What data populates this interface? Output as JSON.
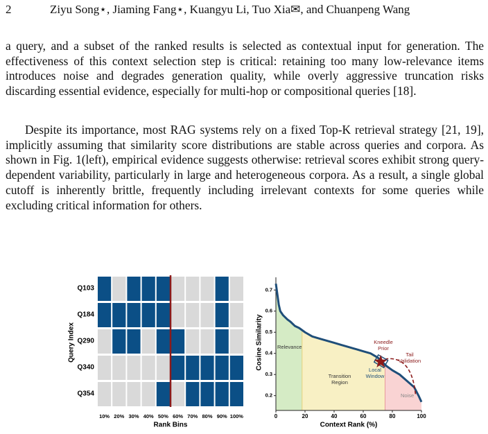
{
  "header": {
    "page_number": "2",
    "authors": "Ziyu Song⋆, Jiaming Fang⋆, Kuangyu Li, Tuo Xia✉, and Chuanpeng Wang"
  },
  "paragraphs": [
    "a query, and a subset of the ranked results is selected as contextual input for generation. The effectiveness of this context selection step is critical: retaining too many low-relevance items introduces noise and degrades generation quality, while overly aggressive truncation risks discarding essential evidence, especially for multi-hop or compositional queries [18].",
    "Despite its importance, most RAG systems rely on a fixed Top-K retrieval strategy [21, 19], implicitly assuming that similarity score distributions are stable across queries and corpora. As shown in Fig. 1(left), empirical evidence suggests otherwise: retrieval scores exhibit strong query-dependent variability, particularly in large and heterogeneous corpora. As a result, a single global cutoff is inherently brittle, frequently including irrelevant contexts for some queries while excluding critical information for others."
  ],
  "figure": {
    "heatmap": {
      "ylabel": "Query Index",
      "xlabel": "Rank Bins",
      "categories": [
        "10%",
        "20%",
        "30%",
        "40%",
        "50%",
        "60%",
        "70%",
        "80%",
        "90%",
        "100%"
      ],
      "rows": [
        {
          "name": "Q103",
          "cells": [
            1,
            0,
            1,
            1,
            1,
            0,
            0,
            0,
            1,
            0
          ]
        },
        {
          "name": "Q184",
          "cells": [
            1,
            1,
            1,
            1,
            1,
            0,
            0,
            0,
            1,
            0
          ]
        },
        {
          "name": "Q290",
          "cells": [
            0,
            1,
            1,
            0,
            1,
            1,
            0,
            0,
            1,
            0
          ]
        },
        {
          "name": "Q340",
          "cells": [
            0,
            0,
            0,
            0,
            0,
            1,
            1,
            1,
            1,
            1
          ]
        },
        {
          "name": "Q354",
          "cells": [
            0,
            0,
            0,
            0,
            1,
            0,
            1,
            1,
            1,
            1
          ]
        }
      ],
      "on_color": "#0b4f86",
      "off_color": "#d9d9d9",
      "cutoff_color": "#8b1a1a"
    },
    "chart": {
      "type": "line",
      "xlabel": "Context Rank (%)",
      "ylabel": "Cosine Similarity",
      "x": [
        0,
        1,
        2,
        3,
        5,
        8,
        10,
        13,
        16,
        20,
        25,
        30,
        35,
        40,
        45,
        50,
        55,
        60,
        65,
        70,
        73,
        76,
        80,
        85,
        90,
        95,
        98,
        100
      ],
      "values": [
        0.73,
        0.68,
        0.63,
        0.6,
        0.58,
        0.56,
        0.55,
        0.53,
        0.52,
        0.5,
        0.48,
        0.47,
        0.46,
        0.45,
        0.44,
        0.43,
        0.42,
        0.41,
        0.4,
        0.38,
        0.36,
        0.34,
        0.32,
        0.3,
        0.27,
        0.24,
        0.2,
        0.17
      ],
      "color": "#1f4e79",
      "xlim": [
        0,
        100
      ],
      "ylim": [
        0.13,
        0.76
      ],
      "xticks": [
        0,
        20,
        40,
        60,
        80,
        100
      ],
      "yticks": [
        0.2,
        0.3,
        0.4,
        0.5,
        0.6,
        0.7
      ],
      "regions": [
        {
          "label": "Relevance",
          "start": 0,
          "end": 18,
          "color": "#d5ebc5"
        },
        {
          "label": "Transition Region",
          "start": 18,
          "end": 75,
          "color": "#f8f0c4"
        },
        {
          "label": "Noise",
          "start": 75,
          "end": 100,
          "color": "#f9d3d3"
        }
      ],
      "knee": {
        "x": 72,
        "y": 0.36
      },
      "annotations": [
        "Kneedle Prior",
        "Local Window",
        "Tail Validation"
      ]
    }
  }
}
